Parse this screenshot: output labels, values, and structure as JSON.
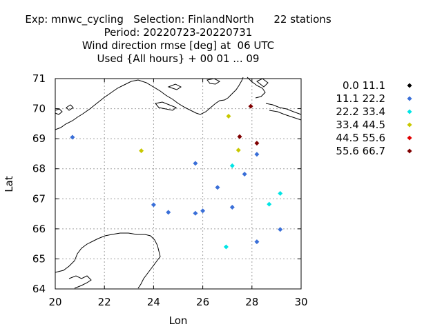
{
  "header": {
    "line1": "Exp: mnwc_cycling   Selection: FinlandNorth      22 stations",
    "line2": "Period: 20220723-20220731",
    "line3": "Wind direction rmse [deg] at  06 UTC",
    "line4": "Used {All hours} + 00 01 ... 09"
  },
  "chart_data": {
    "type": "scatter",
    "xlabel": "Lon",
    "ylabel": "Lat",
    "xlim": [
      20,
      30
    ],
    "ylim": [
      64,
      71
    ],
    "x_ticks": [
      20,
      22,
      24,
      26,
      28,
      30
    ],
    "y_ticks": [
      64,
      65,
      66,
      67,
      68,
      69,
      70,
      71
    ],
    "grid": true,
    "legend_position": "right",
    "classes": [
      {
        "label": "0.0 11.1",
        "color": "#000000"
      },
      {
        "label": "11.1 22.2",
        "color": "#3a6fd8"
      },
      {
        "label": "22.2 33.4",
        "color": "#00e5e5"
      },
      {
        "label": "33.4 44.5",
        "color": "#c8c800"
      },
      {
        "label": "44.5 55.6",
        "color": "#e00000"
      },
      {
        "label": "55.6 66.7",
        "color": "#800000"
      }
    ],
    "points": [
      {
        "lon": 20.7,
        "lat": 69.05,
        "cls": 1
      },
      {
        "lon": 23.5,
        "lat": 68.6,
        "cls": 3
      },
      {
        "lon": 24.0,
        "lat": 66.8,
        "cls": 1
      },
      {
        "lon": 24.6,
        "lat": 66.55,
        "cls": 1
      },
      {
        "lon": 25.7,
        "lat": 68.18,
        "cls": 1
      },
      {
        "lon": 25.7,
        "lat": 66.52,
        "cls": 1
      },
      {
        "lon": 26.0,
        "lat": 66.6,
        "cls": 1
      },
      {
        "lon": 26.6,
        "lat": 67.38,
        "cls": 1
      },
      {
        "lon": 26.95,
        "lat": 65.4,
        "cls": 2
      },
      {
        "lon": 27.05,
        "lat": 69.75,
        "cls": 3
      },
      {
        "lon": 27.2,
        "lat": 68.1,
        "cls": 2
      },
      {
        "lon": 27.2,
        "lat": 66.72,
        "cls": 1
      },
      {
        "lon": 27.45,
        "lat": 68.62,
        "cls": 3
      },
      {
        "lon": 27.5,
        "lat": 69.07,
        "cls": 5
      },
      {
        "lon": 27.7,
        "lat": 67.82,
        "cls": 1
      },
      {
        "lon": 27.95,
        "lat": 70.08,
        "cls": 5
      },
      {
        "lon": 28.2,
        "lat": 68.85,
        "cls": 5
      },
      {
        "lon": 28.2,
        "lat": 68.48,
        "cls": 1
      },
      {
        "lon": 28.2,
        "lat": 65.57,
        "cls": 1
      },
      {
        "lon": 28.7,
        "lat": 66.82,
        "cls": 2
      },
      {
        "lon": 29.15,
        "lat": 67.18,
        "cls": 2
      },
      {
        "lon": 29.15,
        "lat": 65.98,
        "cls": 1
      }
    ]
  }
}
